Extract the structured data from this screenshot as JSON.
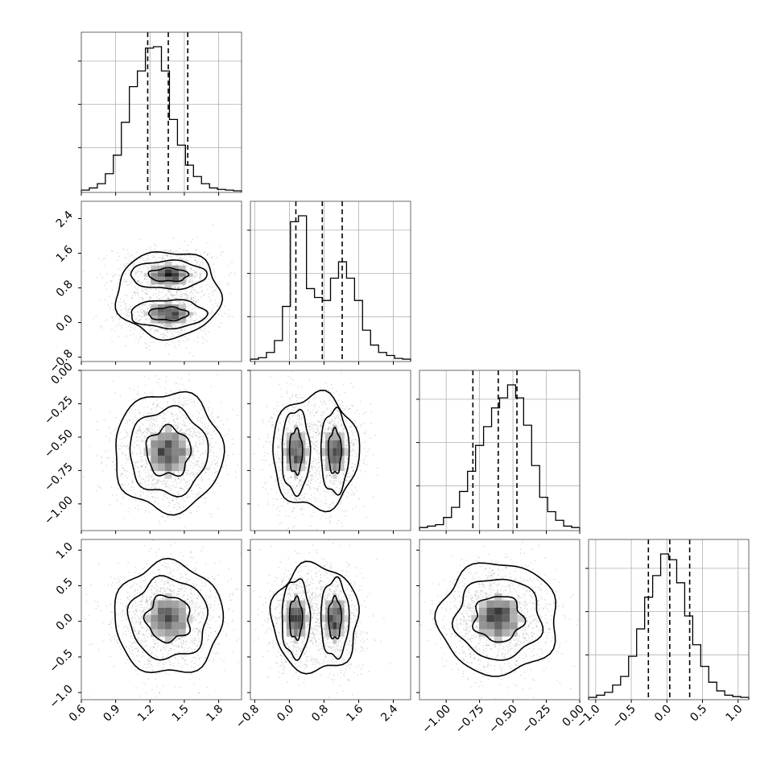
{
  "chart_data": {
    "type": "corner",
    "n_params": 4,
    "params": [
      {
        "range": [
          0.6,
          2.0
        ],
        "ticks": [
          0.6,
          0.9,
          1.2,
          1.5,
          1.8
        ],
        "tick_labels": [
          "0.6",
          "0.9",
          "1.2",
          "1.5",
          "1.8"
        ],
        "quantiles": [
          1.18,
          1.36,
          1.53
        ],
        "hist": {
          "edges_start": 0.6,
          "bin_width": 0.07,
          "counts": [
            0.5,
            2,
            5,
            12,
            25,
            48,
            73,
            84,
            100,
            101,
            84,
            50,
            32,
            18,
            10,
            5,
            2,
            1,
            0.5,
            0
          ]
        }
      },
      {
        "range": [
          -0.9,
          2.8
        ],
        "ticks": [
          -0.8,
          0.0,
          0.8,
          1.6,
          2.4
        ],
        "tick_labels": [
          "−0.8",
          "0.0",
          "0.8",
          "1.6",
          "2.4"
        ],
        "quantiles": [
          0.15,
          0.76,
          1.22
        ],
        "hist": {
          "edges_start": -0.9,
          "bin_width": 0.185,
          "counts": [
            0.5,
            1.5,
            5,
            13,
            36,
            93,
            97,
            48,
            42,
            40,
            55,
            66,
            55,
            40,
            20,
            10,
            5,
            3,
            1,
            0.5
          ]
        }
      },
      {
        "range": [
          -1.2,
          0.0
        ],
        "ticks": [
          -1.0,
          -0.75,
          -0.5,
          -0.25,
          0.0
        ],
        "tick_labels": [
          "−1.00",
          "−0.75",
          "−0.50",
          "−0.25",
          "0.00"
        ],
        "quantiles": [
          -0.8,
          -0.61,
          -0.47
        ],
        "hist": {
          "edges_start": -1.2,
          "bin_width": 0.06,
          "counts": [
            1,
            2,
            3,
            8,
            15,
            26,
            40,
            58,
            71,
            84,
            91,
            100,
            91,
            72,
            44,
            22,
            12,
            6,
            2,
            1
          ]
        }
      },
      {
        "range": [
          -1.1,
          1.15
        ],
        "ticks": [
          -1.0,
          -0.5,
          0.0,
          0.5,
          1.0
        ],
        "tick_labels": [
          "−1.0",
          "−0.5",
          "0.0",
          "0.5",
          "1.0"
        ],
        "quantiles": [
          -0.26,
          0.04,
          0.32
        ],
        "hist": {
          "edges_start": -1.1,
          "bin_width": 0.1125,
          "counts": [
            0.5,
            2,
            4,
            9,
            15,
            29,
            48,
            70,
            85,
            100,
            96,
            80,
            57,
            37,
            22,
            11,
            5,
            2,
            1,
            0.5
          ]
        }
      }
    ],
    "pairs": [
      {
        "row": 1,
        "col": 0
      },
      {
        "row": 2,
        "col": 0
      },
      {
        "row": 2,
        "col": 1
      },
      {
        "row": 3,
        "col": 0
      },
      {
        "row": 3,
        "col": 1
      },
      {
        "row": 3,
        "col": 2
      }
    ],
    "contour_levels": 3,
    "grid": true
  }
}
